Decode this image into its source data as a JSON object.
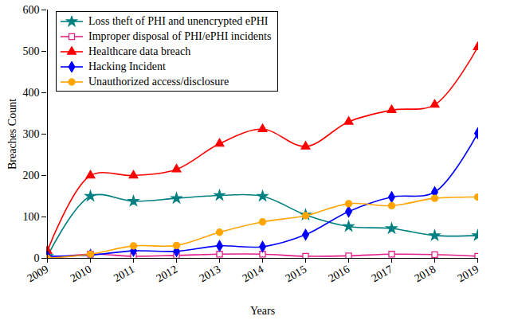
{
  "chart_data": {
    "type": "line",
    "x_label": "Years",
    "y_label": "Breaches Count",
    "categories": [
      "2009",
      "2010",
      "2011",
      "2012",
      "2013",
      "2014",
      "2015",
      "2016",
      "2017",
      "2018",
      "2019"
    ],
    "ylim": [
      0,
      600
    ],
    "yticks": [
      0,
      100,
      200,
      300,
      400,
      500,
      600
    ],
    "grid": false,
    "legend": "top-left",
    "series": [
      {
        "name": "Loss theft of PHI and unencrypted ePHI",
        "color": "#008080",
        "marker": "star",
        "values": [
          5,
          150,
          138,
          145,
          152,
          150,
          105,
          77,
          72,
          55,
          55
        ]
      },
      {
        "name": "Improper disposal of PHI/ePHI incidents",
        "color": "#e0218a",
        "marker": "open_square",
        "values": [
          0,
          10,
          5,
          7,
          10,
          10,
          5,
          6,
          10,
          9,
          5
        ]
      },
      {
        "name": "Healthcare data breach",
        "color": "#ff0000",
        "marker": "triangle",
        "values": [
          18,
          200,
          200,
          215,
          277,
          312,
          270,
          330,
          358,
          371,
          510
        ]
      },
      {
        "name": "Hacking Incident",
        "color": "#0000ff",
        "marker": "diamond",
        "values": [
          5,
          8,
          18,
          17,
          30,
          28,
          57,
          113,
          148,
          160,
          302
        ]
      },
      {
        "name": "Unauthorized access/disclosure",
        "color": "#ffa500",
        "marker": "circle",
        "values": [
          0,
          10,
          30,
          31,
          63,
          88,
          103,
          132,
          127,
          145,
          148
        ]
      }
    ]
  }
}
